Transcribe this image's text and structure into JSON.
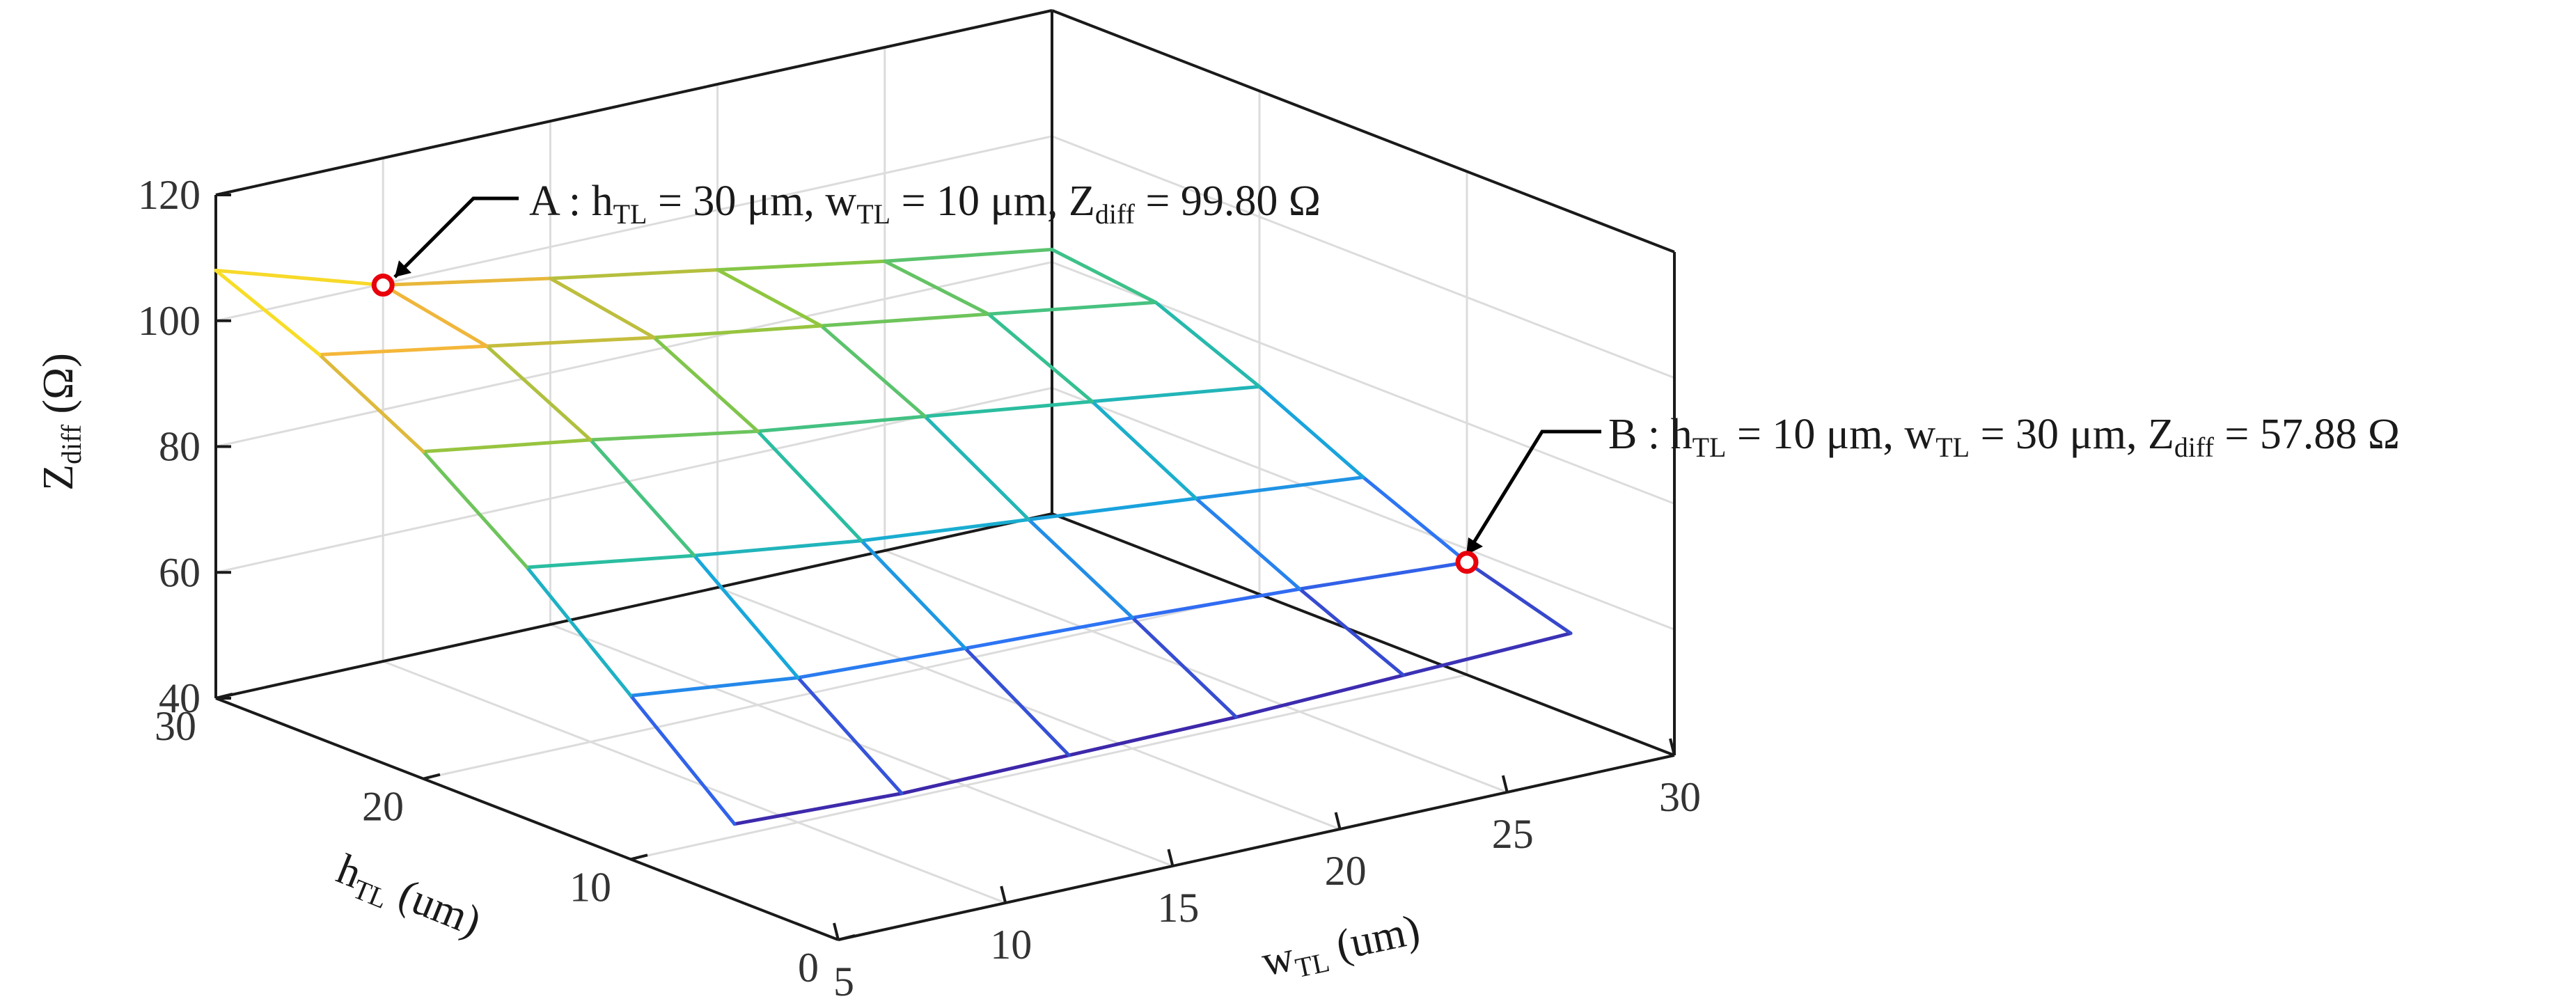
{
  "chart_data": {
    "type": "surface3d",
    "xlabel": "w",
    "xlabel_sub": "TL",
    "xlabel_unit": " (um)",
    "ylabel": "h",
    "ylabel_sub": "TL",
    "ylabel_unit": " (um)",
    "zlabel": "Z",
    "zlabel_sub": "diff",
    "zlabel_unit": " (Ω)",
    "xlim": [
      5,
      30
    ],
    "ylim": [
      0,
      30
    ],
    "zlim": [
      40,
      120
    ],
    "x_ticks": [
      "5",
      "10",
      "15",
      "20",
      "25",
      "30"
    ],
    "y_ticks": [
      "0",
      "10",
      "20",
      "30"
    ],
    "z_ticks": [
      "40",
      "60",
      "80",
      "100",
      "120"
    ],
    "grid": true,
    "colormap": [
      "#3e26a8",
      "#2f6ff6",
      "#16aad9",
      "#2ec097",
      "#8cc63f",
      "#f4b53b",
      "#f9f51b"
    ],
    "w": [
      5,
      10,
      15,
      20,
      25,
      30
    ],
    "h": [
      5,
      10,
      15,
      20,
      25,
      30
    ],
    "z": [
      [
        52.0,
        51.0,
        51.2,
        51.4,
        52.2,
        53.0
      ],
      [
        66.0,
        63.0,
        61.8,
        60.8,
        59.5,
        57.88
      ],
      [
        80.0,
        76.0,
        72.5,
        70.0,
        67.5,
        65.0
      ],
      [
        92.0,
        88.0,
        83.5,
        80.0,
        76.5,
        73.0
      ],
      [
        101.0,
        96.5,
        92.0,
        88.0,
        84.0,
        80.0
      ],
      [
        108.0,
        99.8,
        95.0,
        90.5,
        86.0,
        82.0
      ]
    ],
    "annotations": [
      {
        "id": "A",
        "w": 10,
        "h": 30,
        "z": 99.8,
        "prefix": "A : ",
        "h_label": "h",
        "w_label": "w",
        "z_label": "Z",
        "sub_h": "TL",
        "sub_w": "TL",
        "sub_z": "diff",
        "h_value": " = 30 μm, ",
        "w_value": " = 10 μm, ",
        "z_value": " = 99.80 Ω"
      },
      {
        "id": "B",
        "w": 30,
        "h": 10,
        "z": 57.88,
        "prefix": "B : ",
        "h_label": "h",
        "w_label": "w",
        "z_label": "Z",
        "sub_h": "TL",
        "sub_w": "TL",
        "sub_z": "diff",
        "h_value": " = 10 μm, ",
        "w_value": " = 30 μm, ",
        "z_value": " = 57.88 Ω"
      }
    ],
    "marker_color": "#e8000b"
  }
}
